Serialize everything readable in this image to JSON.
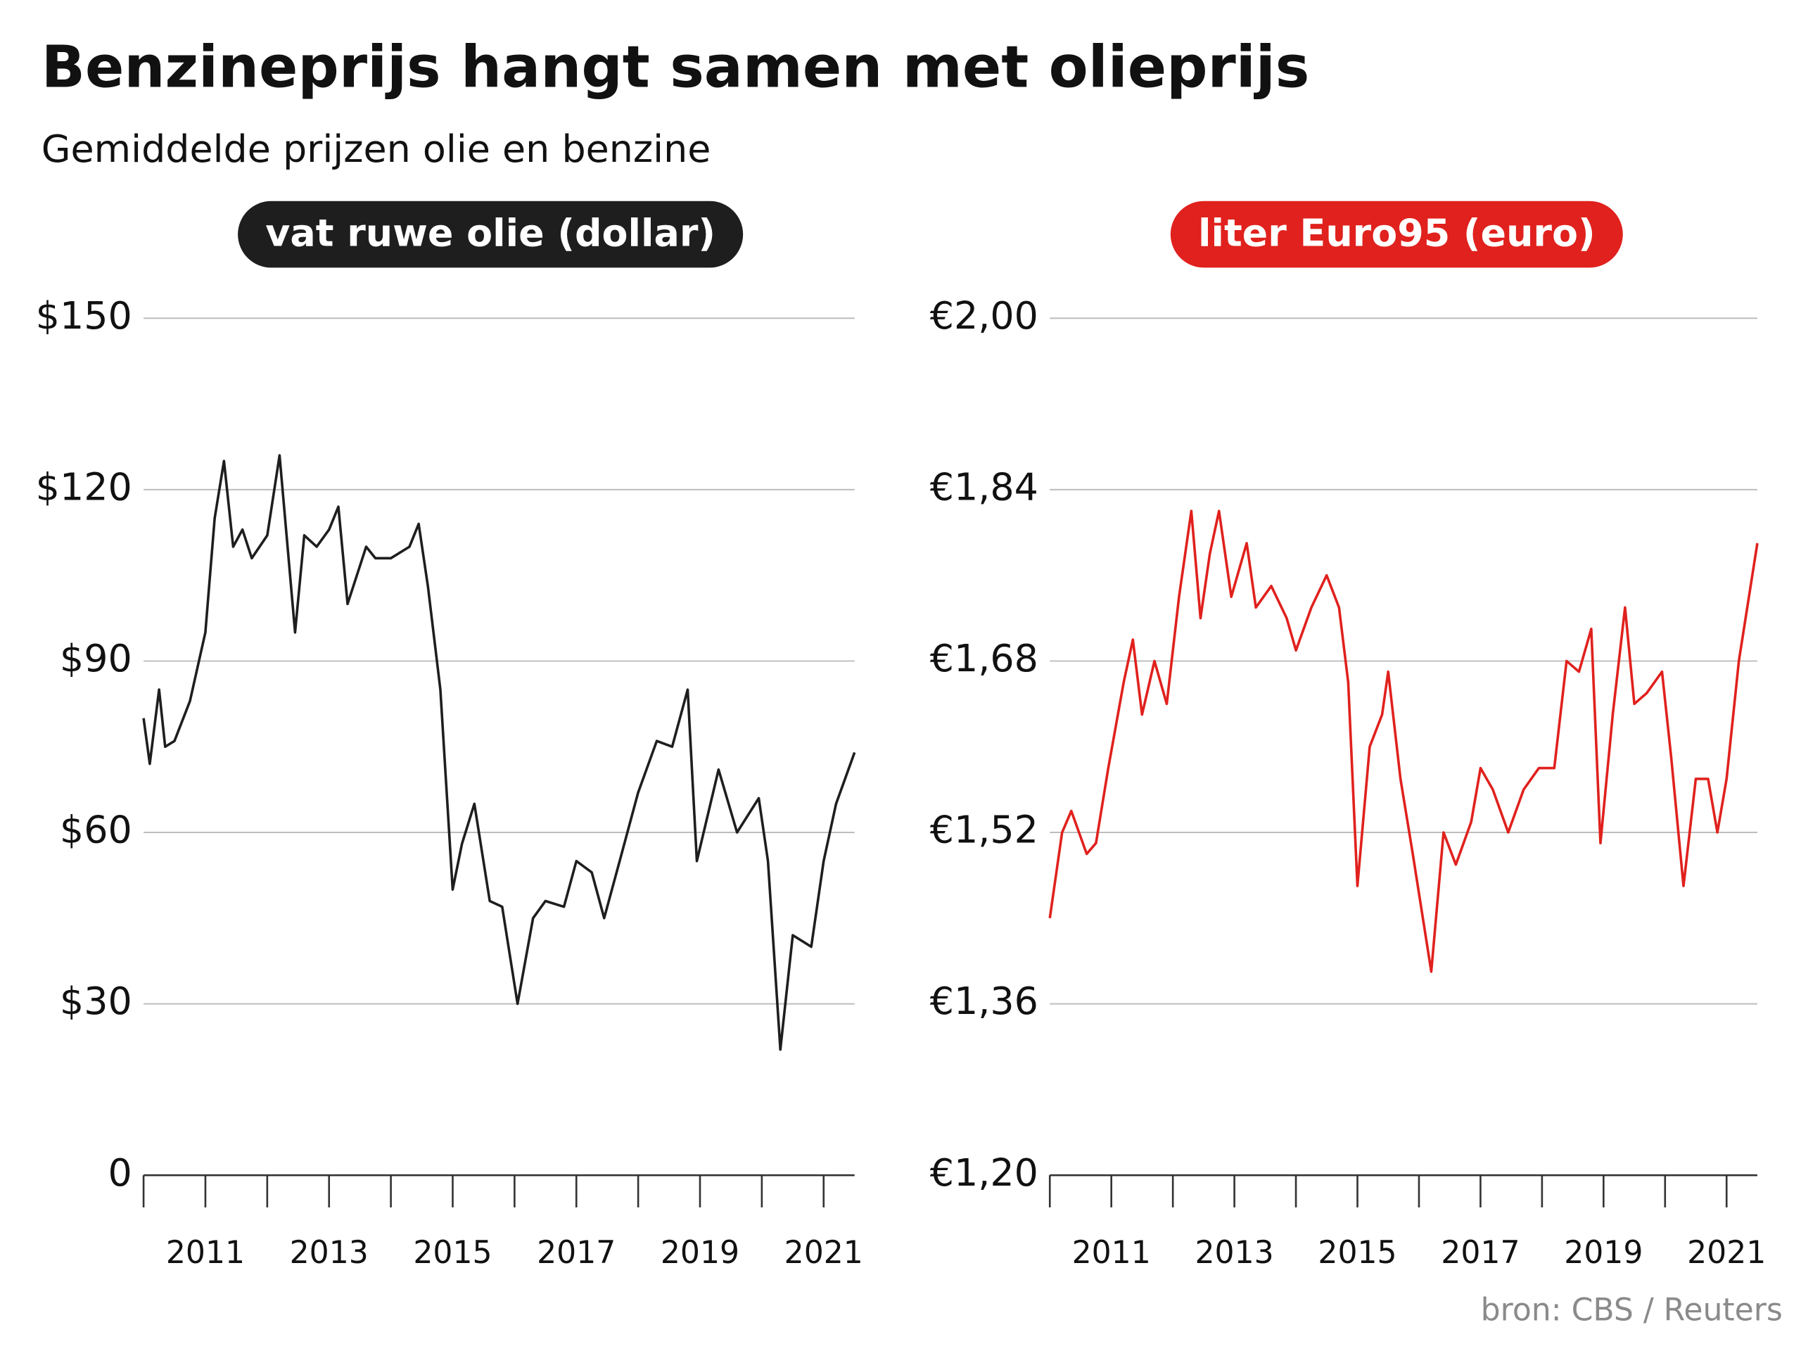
{
  "title": "Benzineprijs hangt samen met olieprijs",
  "subtitle": "Gemiddelde prijzen olie en benzine",
  "source": "bron: CBS / Reuters",
  "chart_data": [
    {
      "type": "line",
      "x": [
        2010.0,
        2010.1,
        2010.25,
        2010.35,
        2010.5,
        2010.75,
        2011.0,
        2011.15,
        2011.3,
        2011.45,
        2011.6,
        2011.75,
        2012.0,
        2012.2,
        2012.45,
        2012.6,
        2012.8,
        2013.0,
        2013.15,
        2013.3,
        2013.6,
        2013.75,
        2014.0,
        2014.3,
        2014.45,
        2014.6,
        2014.8,
        2015.0,
        2015.15,
        2015.35,
        2015.6,
        2015.8,
        2016.05,
        2016.3,
        2016.5,
        2016.8,
        2017.0,
        2017.25,
        2017.45,
        2017.7,
        2018.0,
        2018.3,
        2018.55,
        2018.8,
        2018.95,
        2019.3,
        2019.6,
        2019.95,
        2020.1,
        2020.3,
        2020.5,
        2020.8,
        2021.0,
        2021.2,
        2021.5
      ],
      "series": [
        {
          "name": "vat ruwe olie (dollar)",
          "color": "#1e1e1e",
          "values": [
            80,
            72,
            85,
            75,
            76,
            83,
            95,
            115,
            125,
            110,
            113,
            108,
            112,
            126,
            95,
            112,
            110,
            113,
            117,
            100,
            110,
            108,
            108,
            110,
            114,
            103,
            85,
            50,
            58,
            65,
            48,
            47,
            30,
            45,
            48,
            47,
            55,
            53,
            45,
            55,
            67,
            76,
            75,
            85,
            55,
            71,
            60,
            66,
            55,
            22,
            42,
            40,
            55,
            65,
            74
          ]
        }
      ],
      "xlim": [
        2010,
        2021.5
      ],
      "xticks": [
        2011,
        2013,
        2015,
        2017,
        2019,
        2021
      ],
      "xminorticks": [
        2010,
        2012,
        2014,
        2016,
        2018,
        2020
      ],
      "ylim": [
        0,
        150
      ],
      "yticks": [
        0,
        {
          "value": 30,
          "label": "$30"
        },
        {
          "value": 60,
          "label": "$60"
        },
        {
          "value": 90,
          "label": "$90"
        },
        {
          "value": 120,
          "label": "$120"
        },
        {
          "value": 150,
          "label": "$150"
        }
      ],
      "grid": true
    },
    {
      "type": "line",
      "x": [
        2010.0,
        2010.2,
        2010.35,
        2010.6,
        2010.75,
        2010.95,
        2011.2,
        2011.35,
        2011.5,
        2011.7,
        2011.9,
        2012.1,
        2012.3,
        2012.45,
        2012.6,
        2012.75,
        2012.95,
        2013.2,
        2013.35,
        2013.6,
        2013.85,
        2014.0,
        2014.25,
        2014.5,
        2014.7,
        2014.85,
        2015.0,
        2015.2,
        2015.4,
        2015.5,
        2015.7,
        2015.9,
        2016.2,
        2016.4,
        2016.6,
        2016.85,
        2017.0,
        2017.2,
        2017.45,
        2017.7,
        2017.95,
        2018.2,
        2018.4,
        2018.6,
        2018.8,
        2018.95,
        2019.15,
        2019.35,
        2019.5,
        2019.7,
        2019.95,
        2020.1,
        2020.3,
        2020.5,
        2020.7,
        2020.85,
        2021.0,
        2021.2,
        2021.5
      ],
      "series": [
        {
          "name": "liter Euro95 (euro)",
          "color": "#e0211d",
          "values": [
            1.44,
            1.52,
            1.54,
            1.5,
            1.51,
            1.58,
            1.66,
            1.7,
            1.63,
            1.68,
            1.64,
            1.74,
            1.82,
            1.72,
            1.78,
            1.82,
            1.74,
            1.79,
            1.73,
            1.75,
            1.72,
            1.69,
            1.73,
            1.76,
            1.73,
            1.66,
            1.47,
            1.6,
            1.63,
            1.67,
            1.57,
            1.5,
            1.39,
            1.52,
            1.49,
            1.53,
            1.58,
            1.56,
            1.52,
            1.56,
            1.58,
            1.58,
            1.68,
            1.67,
            1.71,
            1.51,
            1.63,
            1.73,
            1.64,
            1.65,
            1.67,
            1.59,
            1.47,
            1.57,
            1.57,
            1.52,
            1.57,
            1.68,
            1.79
          ]
        }
      ],
      "xlim": [
        2010,
        2021.5
      ],
      "xticks": [
        2011,
        2013,
        2015,
        2017,
        2019,
        2021
      ],
      "xminorticks": [
        2010,
        2012,
        2014,
        2016,
        2018,
        2020
      ],
      "ylim": [
        1.2,
        2.0
      ],
      "yticks": [
        {
          "value": 1.2,
          "label": "€1,20"
        },
        {
          "value": 1.36,
          "label": "€1,36"
        },
        {
          "value": 1.52,
          "label": "€1,52"
        },
        {
          "value": 1.68,
          "label": "€1,68"
        },
        {
          "value": 1.84,
          "label": "€1,84"
        },
        {
          "value": 2.0,
          "label": "€2,00"
        }
      ],
      "grid": true
    }
  ]
}
